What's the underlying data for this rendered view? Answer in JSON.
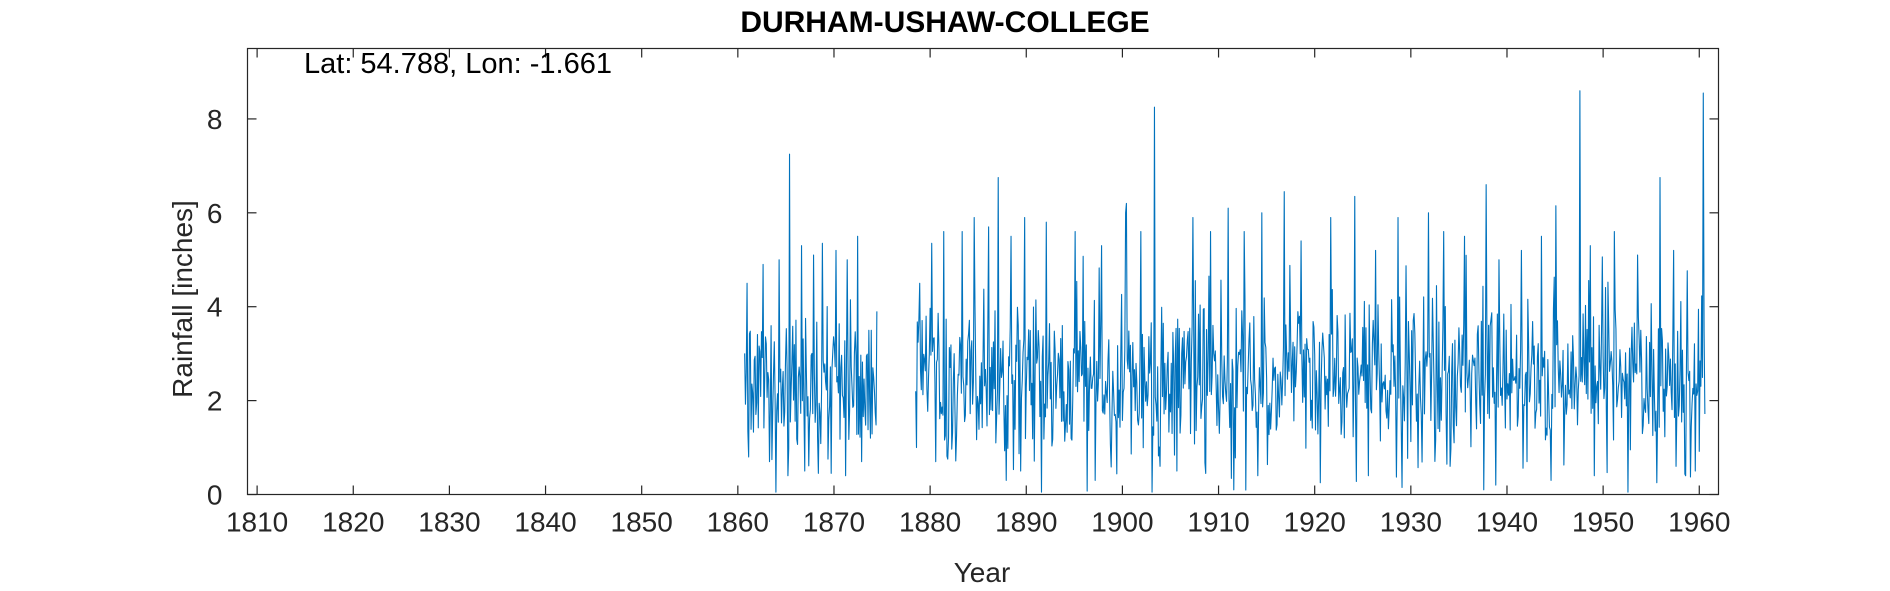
{
  "chart_data": {
    "type": "line",
    "title": "DURHAM-USHAW-COLLEGE",
    "annotation": "Lat: 54.788, Lon: -1.661",
    "xlabel": "Year",
    "ylabel": "Rainfall [inches]",
    "xlim": [
      1809,
      1962
    ],
    "ylim": [
      0,
      9.5
    ],
    "xticks": [
      1810,
      1820,
      1830,
      1840,
      1850,
      1860,
      1870,
      1880,
      1890,
      1900,
      1910,
      1920,
      1930,
      1940,
      1950,
      1960
    ],
    "yticks": [
      0,
      2,
      4,
      6,
      8
    ],
    "grid": false,
    "series_color": "#0072BD",
    "series": [
      {
        "segments": [
          {
            "start": 1860.71,
            "end": 1874.5,
            "mean": 2.2,
            "sd": 0.95,
            "peaks": [
              [
                1861.0,
                4.5
              ],
              [
                1862.6,
                4.9
              ],
              [
                1864.3,
                5.0
              ],
              [
                1865.4,
                7.25
              ],
              [
                1866.6,
                5.3
              ],
              [
                1867.9,
                5.1
              ],
              [
                1868.8,
                5.35
              ],
              [
                1870.2,
                5.2
              ],
              [
                1871.4,
                5.0
              ],
              [
                1872.5,
                5.5
              ],
              [
                1874.42,
                3.9
              ]
            ],
            "troughs": [
              [
                1861.1,
                0.8
              ],
              [
                1863.3,
                0.7
              ],
              [
                1865.2,
                0.4
              ],
              [
                1867.0,
                0.5
              ],
              [
                1868.4,
                0.45
              ],
              [
                1869.7,
                0.45
              ],
              [
                1871.2,
                0.4
              ],
              [
                1872.9,
                0.7
              ],
              [
                1873.8,
                1.2
              ]
            ]
          },
          {
            "start": 1878.5,
            "end": 1960.6,
            "mean": 2.35,
            "sd": 1.05,
            "peaks": [
              [
                1878.9,
                4.5
              ],
              [
                1880.2,
                5.35
              ],
              [
                1881.4,
                5.6
              ],
              [
                1883.3,
                5.6
              ],
              [
                1884.6,
                5.9
              ],
              [
                1886.1,
                5.7
              ],
              [
                1887.1,
                6.75
              ],
              [
                1888.4,
                5.5
              ],
              [
                1889.8,
                5.9
              ],
              [
                1892.1,
                5.8
              ],
              [
                1895.1,
                5.6
              ],
              [
                1897.8,
                5.3
              ],
              [
                1900.3,
                6.0
              ],
              [
                1900.4,
                6.2
              ],
              [
                1901.9,
                5.6
              ],
              [
                1903.3,
                8.25
              ],
              [
                1907.3,
                5.9
              ],
              [
                1909.2,
                5.6
              ],
              [
                1911.0,
                6.1
              ],
              [
                1912.7,
                5.6
              ],
              [
                1914.5,
                6.0
              ],
              [
                1916.8,
                6.45
              ],
              [
                1918.6,
                5.4
              ],
              [
                1921.7,
                5.9
              ],
              [
                1924.2,
                6.35
              ],
              [
                1926.3,
                5.2
              ],
              [
                1928.7,
                5.9
              ],
              [
                1931.8,
                6.0
              ],
              [
                1933.4,
                5.6
              ],
              [
                1935.6,
                5.5
              ],
              [
                1937.8,
                6.6
              ],
              [
                1939.2,
                5.0
              ],
              [
                1941.5,
                5.2
              ],
              [
                1943.6,
                5.5
              ],
              [
                1945.1,
                6.15
              ],
              [
                1947.6,
                8.6
              ],
              [
                1948.7,
                5.3
              ],
              [
                1951.2,
                5.6
              ],
              [
                1953.6,
                5.1
              ],
              [
                1955.9,
                6.75
              ],
              [
                1957.3,
                5.2
              ],
              [
                1960.45,
                8.55
              ]
            ],
            "troughs": [
              [
                1878.6,
                1.0
              ],
              [
                1880.6,
                0.7
              ],
              [
                1887.9,
                0.3
              ],
              [
                1889.4,
                0.5
              ],
              [
                1891.6,
                0.05
              ],
              [
                1897.2,
                0.3
              ],
              [
                1903.9,
                0.6
              ],
              [
                1905.7,
                0.5
              ],
              [
                1911.6,
                0.1
              ],
              [
                1914.1,
                0.4
              ],
              [
                1920.6,
                0.25
              ],
              [
                1925.6,
                0.4
              ],
              [
                1929.1,
                0.15
              ],
              [
                1934.1,
                0.6
              ],
              [
                1937.6,
                0.1
              ],
              [
                1938.8,
                0.2
              ],
              [
                1942.1,
                0.7
              ],
              [
                1944.6,
                0.3
              ],
              [
                1949.1,
                0.4
              ],
              [
                1952.6,
                0.05
              ],
              [
                1955.6,
                0.25
              ],
              [
                1957.6,
                0.6
              ],
              [
                1958.6,
                0.4
              ],
              [
                1959.6,
                0.5
              ]
            ]
          }
        ]
      }
    ]
  }
}
